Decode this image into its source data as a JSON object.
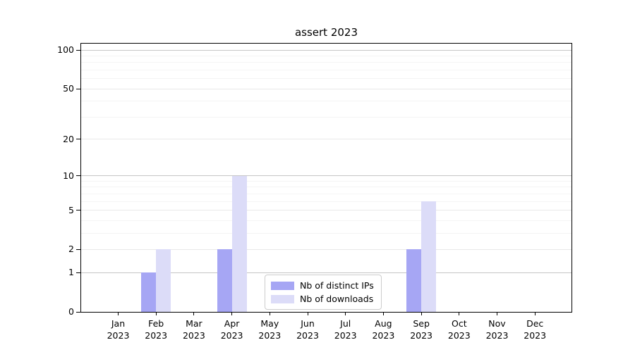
{
  "chart_data": {
    "type": "bar",
    "title": "assert 2023",
    "categories": [
      "Jan",
      "Feb",
      "Mar",
      "Apr",
      "May",
      "Jun",
      "Jul",
      "Aug",
      "Sep",
      "Oct",
      "Nov",
      "Dec"
    ],
    "category_year": "2023",
    "series": [
      {
        "name": "Nb of distinct IPs",
        "color": "#a6a6f4",
        "values": [
          0,
          1,
          0,
          2,
          0,
          0,
          0,
          0,
          2,
          0,
          0,
          0
        ]
      },
      {
        "name": "Nb of downloads",
        "color": "#dcdcf8",
        "values": [
          0,
          2,
          0,
          10,
          0,
          0,
          0,
          0,
          6,
          0,
          0,
          0
        ]
      }
    ],
    "xlabel": "",
    "ylabel": "",
    "yscale": "log1p",
    "ylim": [
      0,
      113
    ],
    "yticks": [
      0,
      1,
      2,
      5,
      10,
      20,
      50,
      100
    ],
    "minor_yticks": [
      3,
      4,
      6,
      7,
      8,
      9,
      30,
      40,
      60,
      70,
      80,
      90
    ],
    "decade_yticks": [
      1,
      10,
      100
    ],
    "grid": true,
    "legend_position": "lower center",
    "colors": {
      "grid_decade": "#c6c6c6",
      "grid_major": "#e8e8e8",
      "grid_minor": "#f4f4f4",
      "axis": "#000000",
      "legend_border": "#cccccc"
    }
  }
}
